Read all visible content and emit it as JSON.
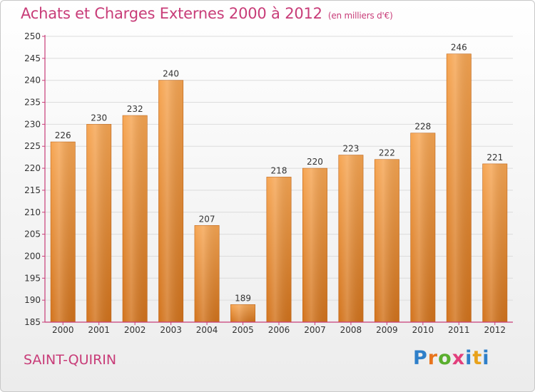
{
  "header": {
    "title": "Achats et Charges Externes 2000 à 2012",
    "subtitle": "(en milliers d'€)"
  },
  "footer": {
    "commune": "SAINT-QUIRIN",
    "brand": "Proxiti",
    "brand_colors": [
      "#2e7fc9",
      "#e8741c",
      "#5aae2e",
      "#e23f7c",
      "#2e7fc9",
      "#e8a21c",
      "#2e7fc9"
    ]
  },
  "chart_data": {
    "type": "bar",
    "title": "Achats et Charges Externes 2000 à 2012",
    "subtitle": "(en milliers d'€)",
    "categories": [
      "2000",
      "2001",
      "2002",
      "2003",
      "2004",
      "2005",
      "2006",
      "2007",
      "2008",
      "2009",
      "2010",
      "2011",
      "2012"
    ],
    "values": [
      226,
      230,
      232,
      240,
      207,
      189,
      218,
      220,
      223,
      222,
      228,
      246,
      221
    ],
    "ylim": [
      185,
      250
    ],
    "yticks": [
      185,
      190,
      195,
      200,
      205,
      210,
      215,
      220,
      225,
      230,
      235,
      240,
      245,
      250
    ],
    "grid": true,
    "bar_color_top": "#f6a552",
    "bar_color_bottom": "#d2731c",
    "axis_color": "#c83c78"
  }
}
